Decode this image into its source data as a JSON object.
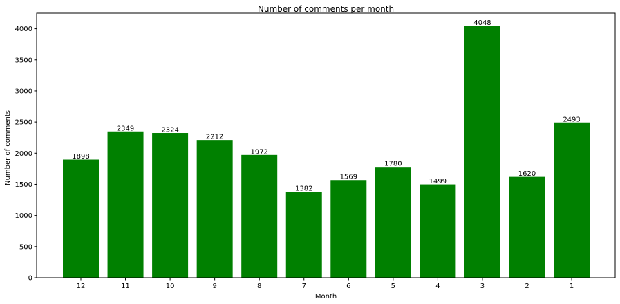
{
  "chart_data": {
    "type": "bar",
    "title": "Number of comments per month",
    "xlabel": "Month",
    "ylabel": "Number of comments",
    "categories": [
      "12",
      "11",
      "10",
      "9",
      "8",
      "7",
      "6",
      "5",
      "4",
      "3",
      "2",
      "1"
    ],
    "values": [
      1898,
      2349,
      2324,
      2212,
      1972,
      1382,
      1569,
      1780,
      1499,
      4048,
      1620,
      2493
    ],
    "data_labels": [
      "1898",
      "2349",
      "2324",
      "2212",
      "1972",
      "1382",
      "1569",
      "1780",
      "1499",
      "4048",
      "1620",
      "2493"
    ],
    "ylim": [
      0,
      4250
    ],
    "yticks": [
      0,
      500,
      1000,
      1500,
      2000,
      2500,
      3000,
      3500,
      4000
    ],
    "ytick_labels": [
      "0",
      "500",
      "1000",
      "1500",
      "2000",
      "2500",
      "3000",
      "3500",
      "4000"
    ],
    "bar_color": "#008000",
    "grid": false,
    "legend": "none"
  }
}
